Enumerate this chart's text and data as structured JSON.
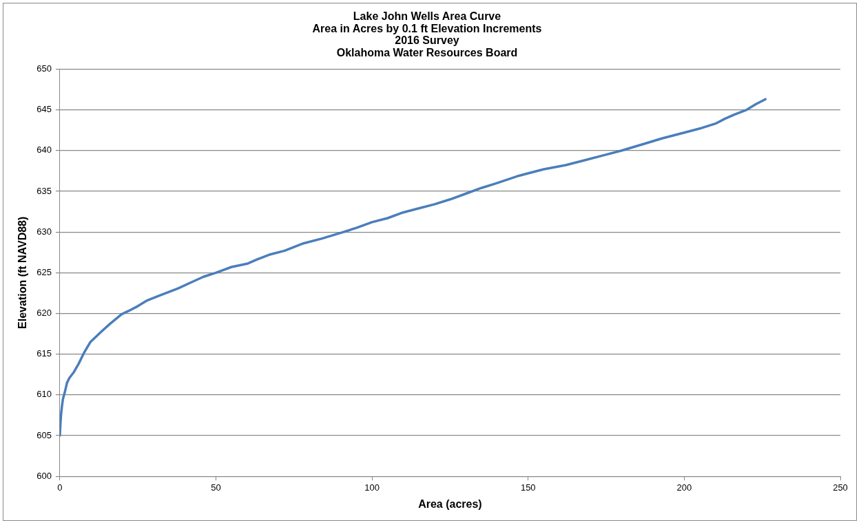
{
  "chart_data": {
    "type": "line",
    "title": "Lake John Wells Area Curve\nArea in Acres by 0.1 ft Elevation Increments\n2016 Survey\nOklahoma Water Resources Board",
    "xlabel": "Area (acres)",
    "ylabel": "Elevation (ft NAVD88)",
    "xlim": [
      0,
      250
    ],
    "xticks": [
      0,
      50,
      100,
      150,
      200,
      250
    ],
    "ylim": [
      600,
      650
    ],
    "yticks": [
      600,
      605,
      610,
      615,
      620,
      625,
      630,
      635,
      640,
      645,
      650
    ],
    "grid": "y",
    "legend": false,
    "marker": "none",
    "line_style": "solid",
    "series": [
      {
        "color": "#4a7ebb",
        "x": [
          0,
          0.2,
          0.4,
          0.7,
          1,
          1.7,
          2.3,
          3.1,
          4.5,
          6,
          7.8,
          9.8,
          13.1,
          16,
          19.8,
          22,
          25,
          28,
          32,
          38,
          42,
          46,
          50,
          55,
          60,
          63,
          67,
          72,
          78,
          84,
          90,
          95,
          100,
          105,
          110,
          115,
          120,
          125,
          130,
          135,
          140,
          147,
          155,
          162,
          168,
          174,
          180,
          187,
          193,
          200,
          205,
          210,
          213,
          216,
          220,
          223,
          226
        ],
        "values": [
          605,
          606.5,
          607.6,
          608.7,
          609.5,
          610.5,
          611.5,
          612.1,
          612.8,
          613.8,
          615.2,
          616.5,
          617.7,
          618.7,
          619.9,
          620.3,
          620.9,
          621.6,
          622.2,
          623.1,
          623.8,
          624.5,
          625,
          625.7,
          626.1,
          626.6,
          627.2,
          627.7,
          628.6,
          629.2,
          629.9,
          630.5,
          631.2,
          631.7,
          632.4,
          632.9,
          633.4,
          634,
          634.7,
          635.4,
          636,
          636.9,
          637.7,
          638.2,
          638.8,
          639.4,
          640,
          640.8,
          641.5,
          642.2,
          642.7,
          643.3,
          643.9,
          644.4,
          645,
          645.7,
          646.3
        ]
      }
    ]
  }
}
